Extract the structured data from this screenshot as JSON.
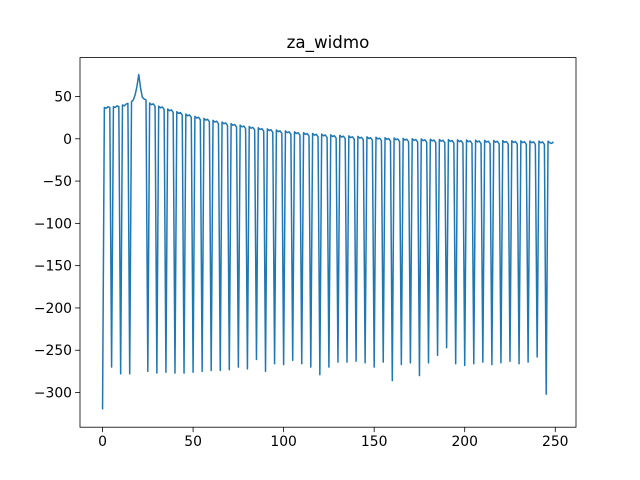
{
  "chart_data": {
    "type": "line",
    "title": "za_widmo",
    "color": "#1f77b4",
    "x": [
      0,
      1,
      2,
      3,
      4,
      5,
      6,
      7,
      8,
      9,
      10,
      11,
      12,
      13,
      14,
      15,
      16,
      17,
      18,
      19,
      20,
      21,
      22,
      23,
      24,
      25,
      26,
      27,
      28,
      29,
      30,
      31,
      32,
      33,
      34,
      35,
      36,
      37,
      38,
      39,
      40,
      41,
      42,
      43,
      44,
      45,
      46,
      47,
      48,
      49,
      50,
      51,
      52,
      53,
      54,
      55,
      56,
      57,
      58,
      59,
      60,
      61,
      62,
      63,
      64,
      65,
      66,
      67,
      68,
      69,
      70,
      71,
      72,
      73,
      74,
      75,
      76,
      77,
      78,
      79,
      80,
      81,
      82,
      83,
      84,
      85,
      86,
      87,
      88,
      89,
      90,
      91,
      92,
      93,
      94,
      95,
      96,
      97,
      98,
      99,
      100,
      101,
      102,
      103,
      104,
      105,
      106,
      107,
      108,
      109,
      110,
      111,
      112,
      113,
      114,
      115,
      116,
      117,
      118,
      119,
      120,
      121,
      122,
      123,
      124,
      125,
      126,
      127,
      128,
      129,
      130,
      131,
      132,
      133,
      134,
      135,
      136,
      137,
      138,
      139,
      140,
      141,
      142,
      143,
      144,
      145,
      146,
      147,
      148,
      149,
      150,
      151,
      152,
      153,
      154,
      155,
      156,
      157,
      158,
      159,
      160,
      161,
      162,
      163,
      164,
      165,
      166,
      167,
      168,
      169,
      170,
      171,
      172,
      173,
      174,
      175,
      176,
      177,
      178,
      179,
      180,
      181,
      182,
      183,
      184,
      185,
      186,
      187,
      188,
      189,
      190,
      191,
      192,
      193,
      194,
      195,
      196,
      197,
      198,
      199,
      200,
      201,
      202,
      203,
      204,
      205,
      206,
      207,
      208,
      209,
      210,
      211,
      212,
      213,
      214,
      215,
      216,
      217,
      218,
      219,
      220,
      221,
      222,
      223,
      224,
      225,
      226,
      227,
      228,
      229,
      230,
      231,
      232,
      233,
      234,
      235,
      236,
      237,
      238,
      239,
      240,
      241,
      242,
      243,
      244,
      245,
      246,
      247,
      248,
      249
    ],
    "values": [
      -320,
      37,
      36,
      38,
      37,
      -270,
      38,
      37,
      39,
      38,
      -278,
      40,
      39,
      41,
      42,
      -278,
      44,
      46,
      52,
      62,
      76,
      60,
      49,
      47,
      46,
      -275,
      42.3,
      40.3,
      41.3,
      38.3,
      -277,
      38.6,
      36.6,
      37.6,
      34.6,
      -276,
      35.2,
      33.2,
      34.2,
      31.2,
      -277,
      32,
      30,
      31,
      28,
      -277,
      29.2,
      27.2,
      28.2,
      25.2,
      -276,
      26.5,
      24.5,
      25.5,
      22.5,
      -275,
      24.1,
      22.1,
      23.1,
      20.1,
      -274,
      21.8,
      19.8,
      20.8,
      17.8,
      -274,
      19.8,
      17.8,
      18.8,
      15.8,
      -273,
      17.9,
      15.9,
      16.9,
      13.9,
      -270,
      16.1,
      14.1,
      15.1,
      12.1,
      -272,
      14.5,
      12.5,
      13.5,
      10.5,
      -261,
      13,
      11,
      12,
      9,
      -275,
      11.7,
      9.7,
      10.7,
      7.7,
      -266,
      10.4,
      8.4,
      9.4,
      6.4,
      -267,
      9.3,
      7.3,
      8.3,
      5.3,
      -262,
      8.2,
      6.2,
      7.2,
      4.2,
      -266,
      7.2,
      5.2,
      6.2,
      3.2,
      -270,
      6.3,
      4.3,
      5.3,
      2.3,
      -279,
      5.5,
      3.5,
      4.5,
      1.5,
      -270,
      4.7,
      2.7,
      3.7,
      0.7,
      -264,
      4.1,
      2.1,
      3.1,
      0.1,
      -264,
      3.4,
      1.4,
      2.4,
      -0.6,
      -263,
      2.8,
      0.8,
      1.8,
      -1.2,
      -265,
      2.3,
      0.3,
      1.3,
      -1.7,
      -270,
      1.8,
      -0.2,
      0.8,
      -2.2,
      -264,
      1.3,
      -0.7,
      0.3,
      -2.7,
      -286,
      0.9,
      -1.1,
      -0.1,
      -3.1,
      -267,
      0.5,
      -1.5,
      -0.5,
      -3.5,
      -265,
      0.1,
      -1.9,
      -0.9,
      -3.9,
      -280,
      -0.2,
      -2.2,
      -1.2,
      -4.2,
      -265,
      -0.5,
      -2.5,
      -1.5,
      -4.5,
      -256,
      -0.8,
      -2.8,
      -1.8,
      -4.8,
      -247,
      -1,
      -3,
      -2,
      -5,
      -266,
      -1.3,
      -3.3,
      -2.3,
      -5.3,
      -268,
      -1.5,
      -3.5,
      -2.5,
      -5.5,
      -266,
      -1.7,
      -3.7,
      -2.7,
      -5.7,
      -264,
      -1.9,
      -3.9,
      -2.9,
      -5.9,
      -267,
      -2,
      -4,
      -3,
      -6,
      -265,
      -2.2,
      -4.2,
      -3.2,
      -6.2,
      -263,
      -2.3,
      -4.3,
      -3.3,
      -6.3,
      -266,
      -2.5,
      -4.5,
      -3.5,
      -6.5,
      -264,
      -2.6,
      -4.6,
      -3.6,
      -6.6,
      -258,
      -2.7,
      -4.7,
      -3.7,
      -6.7,
      -302,
      -2.8,
      -4.8,
      -5.5,
      -3.5
    ],
    "xlim": [
      -12.45,
      261.45
    ],
    "xticks": [
      0,
      50,
      100,
      150,
      200,
      250
    ],
    "ylim": [
      -341,
      96
    ],
    "yticks": [
      {
        "value": -300,
        "label": "−300"
      },
      {
        "value": -250,
        "label": "−250"
      },
      {
        "value": -200,
        "label": "−200"
      },
      {
        "value": -150,
        "label": "−150"
      },
      {
        "value": -100,
        "label": "−100"
      },
      {
        "value": -50,
        "label": "−50"
      },
      0,
      50
    ],
    "grid": false
  }
}
